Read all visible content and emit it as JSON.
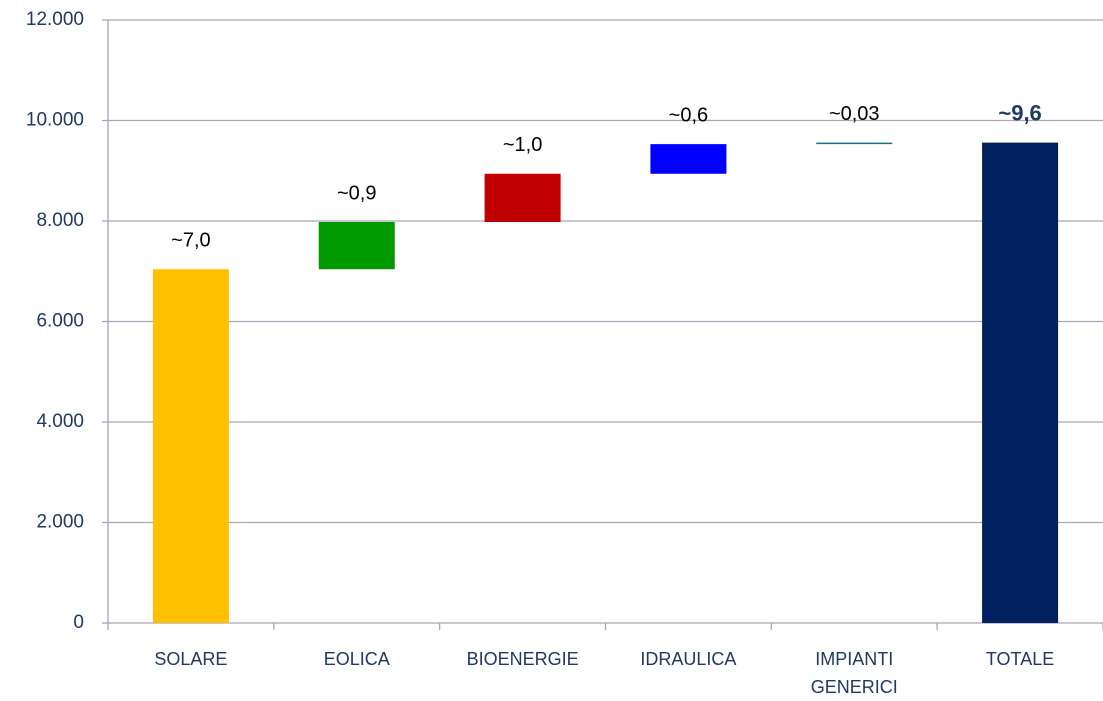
{
  "chart_data": {
    "type": "waterfall",
    "categories": [
      "SOLARE",
      "EOLICA",
      "BIOENERGIE",
      "IDRAULICA",
      "IMPIANTI GENERICI",
      "TOTALE"
    ],
    "values": [
      7040,
      940,
      960,
      590,
      30,
      9560
    ],
    "value_labels": [
      "~7,0",
      "~0,9",
      "~1,0",
      "~0,6",
      "~0,03",
      "~9,6"
    ],
    "measures": [
      "relative",
      "relative",
      "relative",
      "relative",
      "relative",
      "total"
    ],
    "colors": [
      "#ffc000",
      "#009900",
      "#c00000",
      "#0000ff",
      "#1f6e8c",
      "#002060"
    ],
    "ylim": [
      0,
      12000
    ],
    "yticks": [
      0,
      {
        "value": 2000,
        "label": "2.000"
      },
      {
        "value": 4000,
        "label": "4.000"
      },
      {
        "value": 6000,
        "label": "6.000"
      },
      {
        "value": 8000,
        "label": "8.000"
      },
      {
        "value": 10000,
        "label": "10.000"
      },
      {
        "value": 12000,
        "label": "12.000"
      }
    ],
    "grid": true
  }
}
